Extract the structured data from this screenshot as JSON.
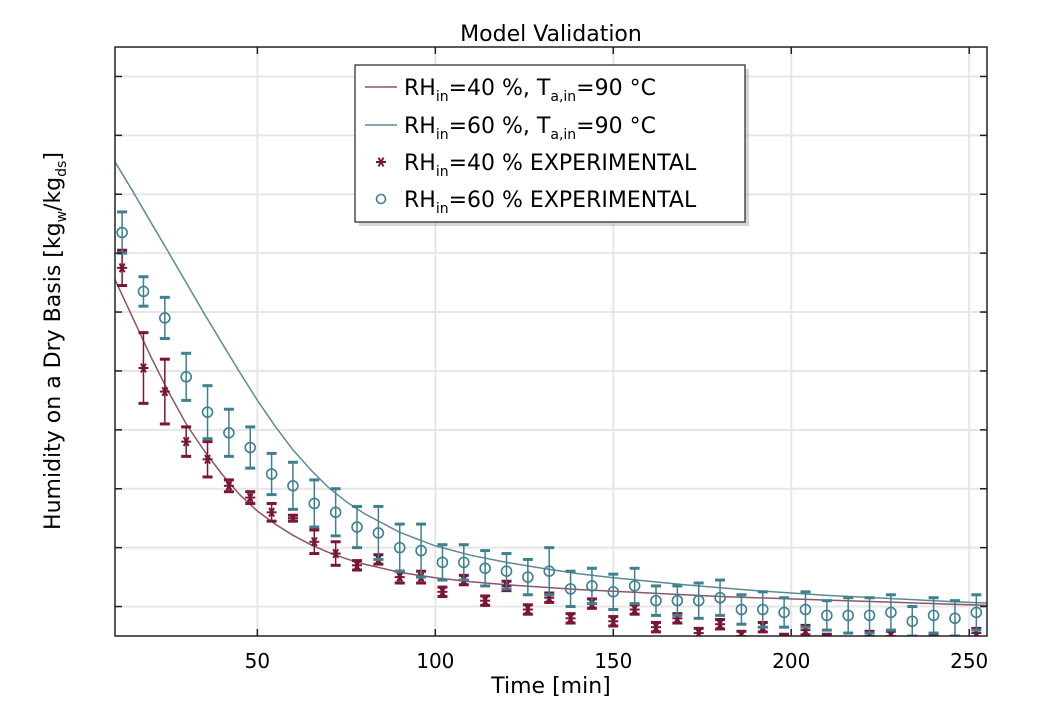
{
  "chart_data": {
    "type": "scatter",
    "title": "Model Validation",
    "xlabel": "Time [min]",
    "ylabel": "Humidity on a Dry Basis [kgw/kgds]",
    "ylabel_parts": {
      "main": "Humidity on a Dry Basis [kg",
      "sub1": "w",
      "mid": "/kg",
      "sub2": "ds",
      "end": "]"
    },
    "xlim": [
      10,
      255
    ],
    "ylim": [
      0,
      1
    ],
    "x_ticks": [
      50,
      100,
      150,
      200,
      250
    ],
    "y_gridlines": [
      0.05,
      0.15,
      0.25,
      0.35,
      0.45,
      0.55,
      0.65,
      0.75,
      0.85,
      0.95
    ],
    "y_tick_labels_shown": false,
    "grid": true,
    "legend_position": "top-center",
    "colors": {
      "rh40": "#7a1535",
      "rh40_line": "#8b5566",
      "rh60": "#3e8090",
      "rh60_line": "#5a8a96"
    },
    "legend": [
      {
        "kind": "line",
        "color_key": "rh40_line",
        "base": "RH",
        "sub": "in",
        "text": "=40 %, T",
        "sub2": "a,in",
        "text2": "=90 °C"
      },
      {
        "kind": "line",
        "color_key": "rh60_line",
        "base": "RH",
        "sub": "in",
        "text": "=60 %, T",
        "sub2": "a,in",
        "text2": "=90 °C"
      },
      {
        "kind": "star",
        "color_key": "rh40",
        "base": "RH",
        "sub": "in",
        "text": "=40 % EXPERIMENTAL"
      },
      {
        "kind": "circle",
        "color_key": "rh60",
        "base": "RH",
        "sub": "in",
        "text": "=60 % EXPERIMENTAL"
      }
    ],
    "series": [
      {
        "kind": "line",
        "color_key": "rh40_line",
        "x": [
          10,
          15,
          20,
          25,
          30,
          35,
          40,
          45,
          50,
          55,
          60,
          65,
          70,
          75,
          80,
          90,
          100,
          110,
          120,
          130,
          140,
          150,
          160,
          170,
          180,
          190,
          200,
          210,
          220,
          230,
          240,
          250,
          255
        ],
        "y": [
          0.605,
          0.54,
          0.475,
          0.415,
          0.36,
          0.315,
          0.275,
          0.24,
          0.212,
          0.19,
          0.171,
          0.155,
          0.142,
          0.131,
          0.122,
          0.108,
          0.099,
          0.092,
          0.087,
          0.083,
          0.079,
          0.076,
          0.073,
          0.07,
          0.067,
          0.065,
          0.063,
          0.061,
          0.059,
          0.057,
          0.055,
          0.053,
          0.052
        ]
      },
      {
        "kind": "line",
        "color_key": "rh60_line",
        "x": [
          10,
          15,
          20,
          25,
          30,
          35,
          40,
          45,
          50,
          55,
          60,
          65,
          70,
          75,
          80,
          90,
          100,
          110,
          120,
          130,
          140,
          150,
          160,
          170,
          180,
          190,
          200,
          210,
          220,
          230,
          240,
          250,
          255
        ],
        "y": [
          0.805,
          0.755,
          0.703,
          0.652,
          0.6,
          0.548,
          0.498,
          0.448,
          0.4,
          0.356,
          0.316,
          0.282,
          0.252,
          0.228,
          0.208,
          0.176,
          0.153,
          0.137,
          0.125,
          0.115,
          0.106,
          0.099,
          0.093,
          0.087,
          0.082,
          0.077,
          0.073,
          0.069,
          0.066,
          0.063,
          0.06,
          0.057,
          0.056
        ]
      },
      {
        "kind": "star",
        "color_key": "rh40",
        "x": [
          12,
          18,
          24,
          30,
          36,
          42,
          48,
          54,
          60,
          66,
          72,
          78,
          84,
          90,
          96,
          102,
          108,
          114,
          120,
          126,
          132,
          138,
          144,
          150,
          156,
          162,
          168,
          174,
          180,
          186,
          192,
          198,
          204,
          210,
          216,
          222,
          228,
          234,
          240,
          246,
          252
        ],
        "y": [
          0.625,
          0.455,
          0.415,
          0.33,
          0.3,
          0.255,
          0.235,
          0.21,
          0.2,
          0.16,
          0.14,
          0.12,
          0.13,
          0.1,
          0.1,
          0.075,
          0.095,
          0.06,
          0.085,
          0.045,
          0.065,
          0.03,
          0.055,
          0.025,
          0.045,
          0.015,
          0.03,
          0.005,
          0.02,
          0.0,
          0.015,
          -0.005,
          0.01,
          -0.005,
          -0.01,
          0.0,
          0.0,
          -0.01,
          -0.005,
          -0.015,
          0.005
        ],
        "err": [
          0.03,
          0.06,
          0.055,
          0.025,
          0.03,
          0.01,
          0.01,
          0.015,
          0.005,
          0.02,
          0.02,
          0.008,
          0.008,
          0.01,
          0.01,
          0.008,
          0.008,
          0.008,
          0.008,
          0.008,
          0.008,
          0.008,
          0.008,
          0.008,
          0.008,
          0.008,
          0.008,
          0.008,
          0.008,
          0.008,
          0.008,
          0.008,
          0.008,
          0.008,
          0.008,
          0.008,
          0.008,
          0.008,
          0.008,
          0.008,
          0.008
        ]
      },
      {
        "kind": "circle",
        "color_key": "rh60",
        "x": [
          12,
          18,
          24,
          30,
          36,
          42,
          48,
          54,
          60,
          66,
          72,
          78,
          84,
          90,
          96,
          102,
          108,
          114,
          120,
          126,
          132,
          138,
          144,
          150,
          156,
          162,
          168,
          174,
          180,
          186,
          192,
          198,
          204,
          210,
          216,
          222,
          228,
          234,
          240,
          246,
          252
        ],
        "y": [
          0.685,
          0.585,
          0.54,
          0.44,
          0.38,
          0.345,
          0.32,
          0.275,
          0.255,
          0.225,
          0.21,
          0.185,
          0.175,
          0.15,
          0.145,
          0.125,
          0.125,
          0.115,
          0.11,
          0.1,
          0.11,
          0.08,
          0.085,
          0.075,
          0.085,
          0.06,
          0.06,
          0.06,
          0.065,
          0.045,
          0.045,
          0.04,
          0.045,
          0.035,
          0.035,
          0.035,
          0.04,
          0.025,
          0.035,
          0.03,
          0.04
        ],
        "err": [
          0.035,
          0.025,
          0.035,
          0.04,
          0.045,
          0.04,
          0.035,
          0.035,
          0.04,
          0.04,
          0.04,
          0.035,
          0.045,
          0.04,
          0.045,
          0.03,
          0.03,
          0.03,
          0.03,
          0.03,
          0.04,
          0.03,
          0.03,
          0.03,
          0.03,
          0.025,
          0.025,
          0.03,
          0.03,
          0.025,
          0.03,
          0.025,
          0.03,
          0.025,
          0.03,
          0.03,
          0.03,
          0.025,
          0.03,
          0.03,
          0.03
        ]
      }
    ]
  }
}
